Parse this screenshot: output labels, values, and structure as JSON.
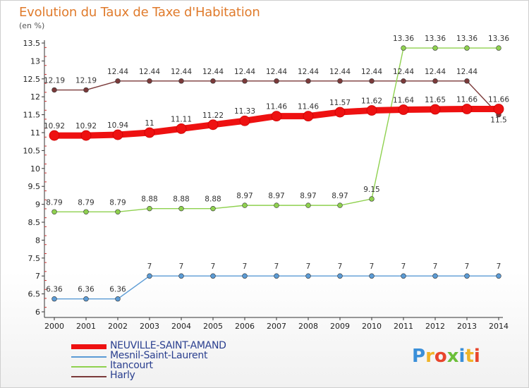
{
  "page": {
    "title": "Evolution du Taux de Taxe d'Habitation",
    "unit_label": "(en %)"
  },
  "chart_data": {
    "type": "line",
    "title": "Evolution du Taux de Taxe d'Habitation",
    "ylabel": "(en %)",
    "x": [
      2000,
      2001,
      2002,
      2003,
      2004,
      2005,
      2006,
      2007,
      2008,
      2009,
      2010,
      2011,
      2012,
      2013,
      2014
    ],
    "ylim": [
      6,
      13.5
    ],
    "yticks": [
      6,
      6.5,
      7,
      7.5,
      8,
      8.5,
      9,
      9.5,
      10,
      10.5,
      11,
      11.5,
      12,
      12.5,
      13,
      13.5
    ],
    "grid": false,
    "legend_position": "bottom-left",
    "series": [
      {
        "name": "NEUVILLE-SAINT-AMAND",
        "color": "#ee1111",
        "values": [
          10.92,
          10.92,
          10.94,
          11,
          11.11,
          11.22,
          11.33,
          11.46,
          11.46,
          11.57,
          11.62,
          11.64,
          11.65,
          11.66,
          11.66
        ],
        "labels": [
          "10.92",
          "10.92",
          "10.94",
          "11",
          "11.11",
          "11.22",
          "11.33",
          "11.46",
          "11.46",
          "11.57",
          "11.62",
          "11.64",
          "11.65",
          "11.66",
          "11.66"
        ]
      },
      {
        "name": "Mesnil-Saint-Laurent",
        "color": "#5b9bd5",
        "values": [
          6.36,
          6.36,
          6.36,
          7,
          7,
          7,
          7,
          7,
          7,
          7,
          7,
          7,
          7,
          7,
          7
        ],
        "labels": [
          "6.36",
          "6.36",
          "6.36",
          "7",
          "7",
          "7",
          "7",
          "7",
          "7",
          "7",
          "7",
          "7",
          "7",
          "7",
          "7"
        ]
      },
      {
        "name": "Itancourt",
        "color": "#8fd14f",
        "values": [
          8.79,
          8.79,
          8.79,
          8.88,
          8.88,
          8.88,
          8.97,
          8.97,
          8.97,
          8.97,
          9.15,
          13.36,
          13.36,
          13.36,
          13.36
        ],
        "labels": [
          "8.79",
          "8.79",
          "8.79",
          "8.88",
          "8.88",
          "8.88",
          "8.97",
          "8.97",
          "8.97",
          "8.97",
          "9.15",
          "13.36",
          "13.36",
          "13.36",
          "13.36"
        ]
      },
      {
        "name": "Harly",
        "color": "#7b3a3a",
        "values": [
          12.19,
          12.19,
          12.44,
          12.44,
          12.44,
          12.44,
          12.44,
          12.44,
          12.44,
          12.44,
          12.44,
          12.44,
          12.44,
          12.44,
          11.5
        ],
        "labels": [
          "12.19",
          "12.19",
          "12.44",
          "12.44",
          "12.44",
          "12.44",
          "12.44",
          "12.44",
          "12.44",
          "12.44",
          "12.44",
          "12.44",
          "12.44",
          "12.44",
          "11.5"
        ]
      }
    ]
  },
  "logo": {
    "text": "Proxiti",
    "letters": [
      "P",
      "r",
      "o",
      "x",
      "i",
      "t",
      "i"
    ],
    "colors": [
      "#3a8fd9",
      "#f0b428",
      "#e8452c",
      "#6cbf3a",
      "#3a8fd9",
      "#f0b428",
      "#e8452c"
    ]
  }
}
